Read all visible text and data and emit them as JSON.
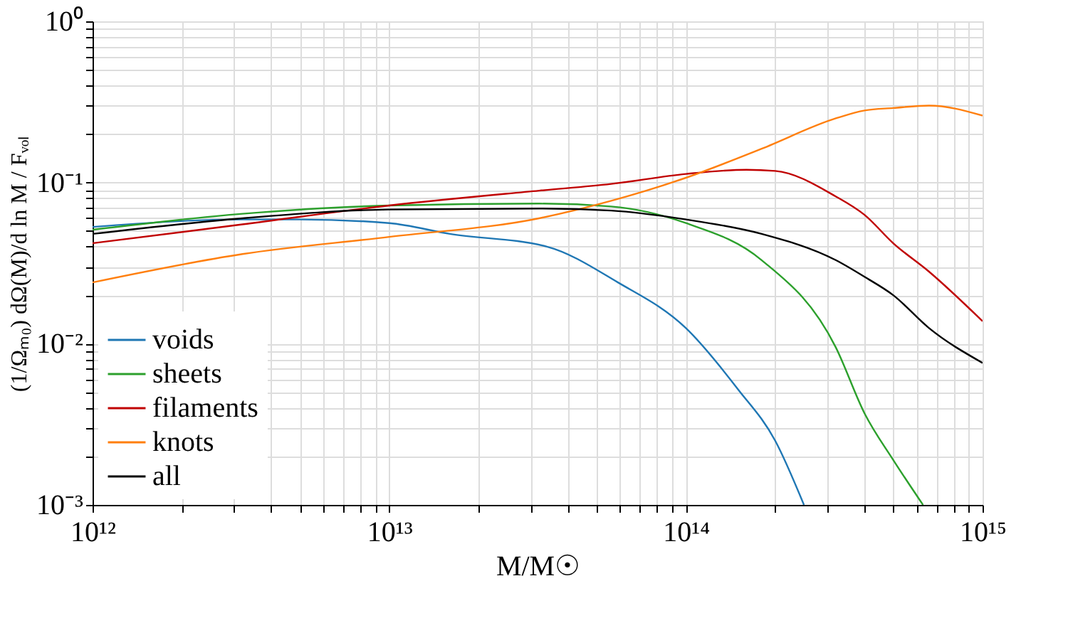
{
  "chart_data": {
    "type": "line",
    "xlabel": "M/M☉",
    "ylabel": "(1/Ωₘ₀) dΩ(M)/d ln M / Fᵥₒₗ",
    "log": "xy",
    "grid": true,
    "legend": "bottom left",
    "marker": "none",
    "line_style": "solid",
    "xlim": [
      1000000000000.0,
      1000000000000000.0
    ],
    "ylim": [
      0.001,
      1
    ],
    "xticks": [
      {
        "value": 1000000000000.0,
        "label": "10¹²"
      },
      {
        "value": 2000000000000.0,
        "label": null
      },
      {
        "value": 3000000000000.0,
        "label": null
      },
      {
        "value": 4000000000000.0,
        "label": null
      },
      {
        "value": 5000000000000.0,
        "label": null
      },
      {
        "value": 6000000000000.0,
        "label": null
      },
      {
        "value": 7000000000000.0,
        "label": null
      },
      {
        "value": 8000000000000.0,
        "label": null
      },
      {
        "value": 9000000000000.0,
        "label": null
      },
      {
        "value": 10000000000000.0,
        "label": "10¹³"
      },
      {
        "value": 20000000000000.0,
        "label": null
      },
      {
        "value": 30000000000000.0,
        "label": null
      },
      {
        "value": 40000000000000.0,
        "label": null
      },
      {
        "value": 50000000000000.0,
        "label": null
      },
      {
        "value": 60000000000000.0,
        "label": null
      },
      {
        "value": 70000000000000.0,
        "label": null
      },
      {
        "value": 80000000000000.0,
        "label": null
      },
      {
        "value": 90000000000000.0,
        "label": null
      },
      {
        "value": 100000000000000.0,
        "label": "10¹⁴"
      },
      {
        "value": 200000000000000.0,
        "label": null
      },
      {
        "value": 300000000000000.0,
        "label": null
      },
      {
        "value": 400000000000000.0,
        "label": null
      },
      {
        "value": 500000000000000.0,
        "label": null
      },
      {
        "value": 600000000000000.0,
        "label": null
      },
      {
        "value": 700000000000000.0,
        "label": null
      },
      {
        "value": 800000000000000.0,
        "label": null
      },
      {
        "value": 900000000000000.0,
        "label": null
      },
      {
        "value": 1000000000000000.0,
        "label": "10¹⁵"
      }
    ],
    "yticks": [
      {
        "value": 0.001,
        "label": "10⁻³"
      },
      {
        "value": 0.002,
        "label": null
      },
      {
        "value": 0.003,
        "label": null
      },
      {
        "value": 0.004,
        "label": null
      },
      {
        "value": 0.005,
        "label": null
      },
      {
        "value": 0.006,
        "label": null
      },
      {
        "value": 0.007,
        "label": null
      },
      {
        "value": 0.008,
        "label": null
      },
      {
        "value": 0.009,
        "label": null
      },
      {
        "value": 0.01,
        "label": "10⁻²"
      },
      {
        "value": 0.02,
        "label": null
      },
      {
        "value": 0.03,
        "label": null
      },
      {
        "value": 0.04,
        "label": null
      },
      {
        "value": 0.05,
        "label": null
      },
      {
        "value": 0.06,
        "label": null
      },
      {
        "value": 0.07,
        "label": null
      },
      {
        "value": 0.08,
        "label": null
      },
      {
        "value": 0.09,
        "label": null
      },
      {
        "value": 0.1,
        "label": "10⁻¹"
      },
      {
        "value": 0.2,
        "label": null
      },
      {
        "value": 0.3,
        "label": null
      },
      {
        "value": 0.4,
        "label": null
      },
      {
        "value": 0.5,
        "label": null
      },
      {
        "value": 0.6,
        "label": null
      },
      {
        "value": 0.7,
        "label": null
      },
      {
        "value": 0.8,
        "label": null
      },
      {
        "value": 0.9,
        "label": null
      },
      {
        "value": 1,
        "label": "10⁰"
      }
    ],
    "series": [
      {
        "name": "voids",
        "color": "#1f77b4",
        "x": [
          1000000000000.0,
          3200000000000.0,
          5000000000000.0,
          10000000000000.0,
          16000000000000.0,
          34000000000000.0,
          59000000000000.0,
          100000000000000.0,
          150000000000000.0,
          200000000000000.0,
          250000000000000.0
        ],
        "values": [
          0.053,
          0.059,
          0.059,
          0.056,
          0.048,
          0.04,
          0.024,
          0.0125,
          0.0052,
          0.0025,
          0.001
        ]
      },
      {
        "name": "sheets",
        "color": "#2ca02c",
        "x": [
          1000000000000.0,
          3200000000000.0,
          10000000000000.0,
          32000000000000.0,
          56000000000000.0,
          100000000000000.0,
          180000000000000.0,
          320000000000000.0,
          400000000000000.0,
          500000000000000.0,
          630000000000000.0
        ],
        "values": [
          0.051,
          0.064,
          0.072,
          0.074,
          0.071,
          0.056,
          0.033,
          0.0095,
          0.0037,
          0.0019,
          0.001
        ]
      },
      {
        "name": "filaments",
        "color": "#c00000",
        "x": [
          1000000000000.0,
          3200000000000.0,
          10000000000000.0,
          32000000000000.0,
          56000000000000.0,
          100000000000000.0,
          160000000000000.0,
          200000000000000.0,
          320000000000000.0,
          400000000000000.0,
          500000000000000.0,
          660000000000000.0,
          1000000000000000.0
        ],
        "values": [
          0.042,
          0.055,
          0.072,
          0.089,
          0.098,
          0.113,
          0.12,
          0.118,
          0.082,
          0.063,
          0.042,
          0.028,
          0.0138
        ]
      },
      {
        "name": "knots",
        "color": "#ff7f0e",
        "x": [
          1000000000000.0,
          3200000000000.0,
          10000000000000.0,
          32000000000000.0,
          56000000000000.0,
          100000000000000.0,
          180000000000000.0,
          320000000000000.0,
          400000000000000.0,
          500000000000000.0,
          660000000000000.0,
          1000000000000000.0
        ],
        "values": [
          0.024,
          0.036,
          0.046,
          0.06,
          0.077,
          0.107,
          0.162,
          0.25,
          0.28,
          0.29,
          0.3,
          0.26
        ]
      },
      {
        "name": "all",
        "color": "#000000",
        "x": [
          1000000000000.0,
          3200000000000.0,
          10000000000000.0,
          32000000000000.0,
          56000000000000.0,
          100000000000000.0,
          180000000000000.0,
          320000000000000.0,
          400000000000000.0,
          500000000000000.0,
          660000000000000.0,
          1000000000000000.0
        ],
        "values": [
          0.048,
          0.06,
          0.068,
          0.069,
          0.067,
          0.059,
          0.048,
          0.033,
          0.026,
          0.02,
          0.0125,
          0.0076
        ]
      }
    ]
  }
}
